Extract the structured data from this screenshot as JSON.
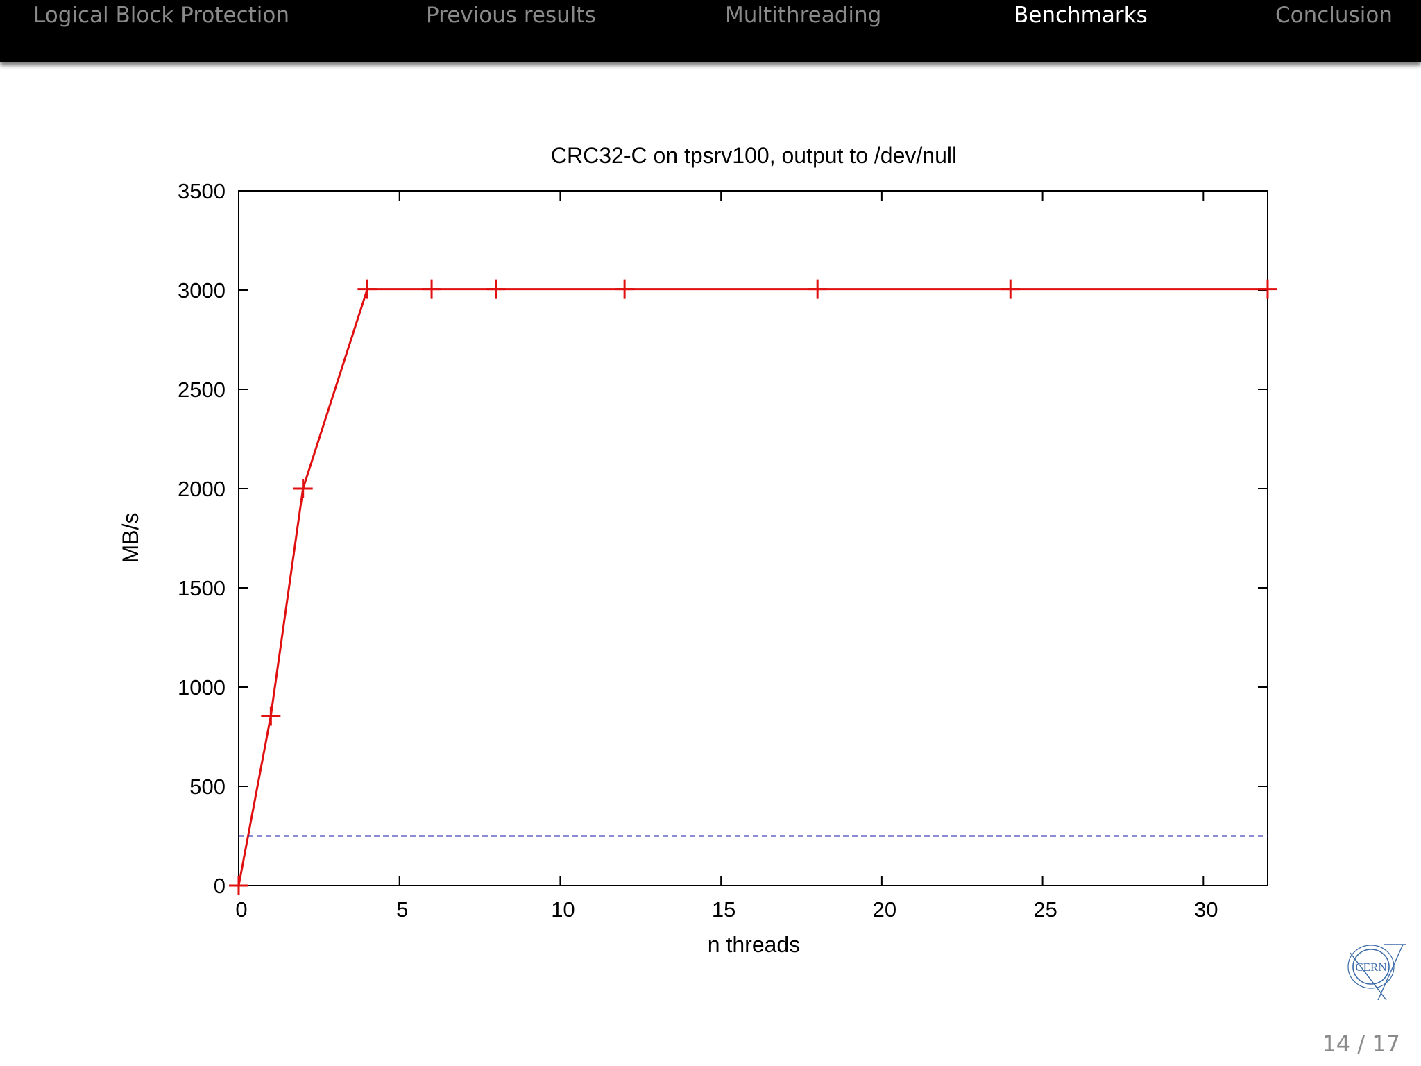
{
  "navbar": {
    "items": [
      {
        "label": "Logical Block Protection",
        "active": false
      },
      {
        "label": "Previous results",
        "active": false
      },
      {
        "label": "Multithreading",
        "active": false
      },
      {
        "label": "Benchmarks",
        "active": true
      },
      {
        "label": "Conclusion",
        "active": false
      }
    ]
  },
  "chart_data": {
    "type": "line",
    "title": "CRC32-C on tpsrv100, output to /dev/null",
    "xlabel": "n threads",
    "ylabel": "MB/s",
    "xlim": [
      0,
      32
    ],
    "ylim": [
      0,
      3500
    ],
    "xticks": [
      0,
      5,
      10,
      15,
      20,
      25,
      30
    ],
    "yticks": [
      0,
      500,
      1000,
      1500,
      2000,
      2500,
      3000,
      3500
    ],
    "grid": false,
    "legend": "none",
    "series": [
      {
        "color": "#e01010",
        "style": "solid",
        "markers": "plus",
        "x": [
          0,
          1,
          2,
          4,
          6,
          8,
          12,
          18,
          24,
          32
        ],
        "y": [
          0,
          855,
          2000,
          3005,
          3005,
          3005,
          3005,
          3005,
          3005,
          3005
        ]
      },
      {
        "color": "#1a1aa8",
        "style": "dashed",
        "markers": "none",
        "x": [
          0,
          32
        ],
        "y": [
          250,
          250
        ]
      }
    ]
  },
  "footer": {
    "logo_text": "CERN",
    "page": "14 / 17"
  }
}
